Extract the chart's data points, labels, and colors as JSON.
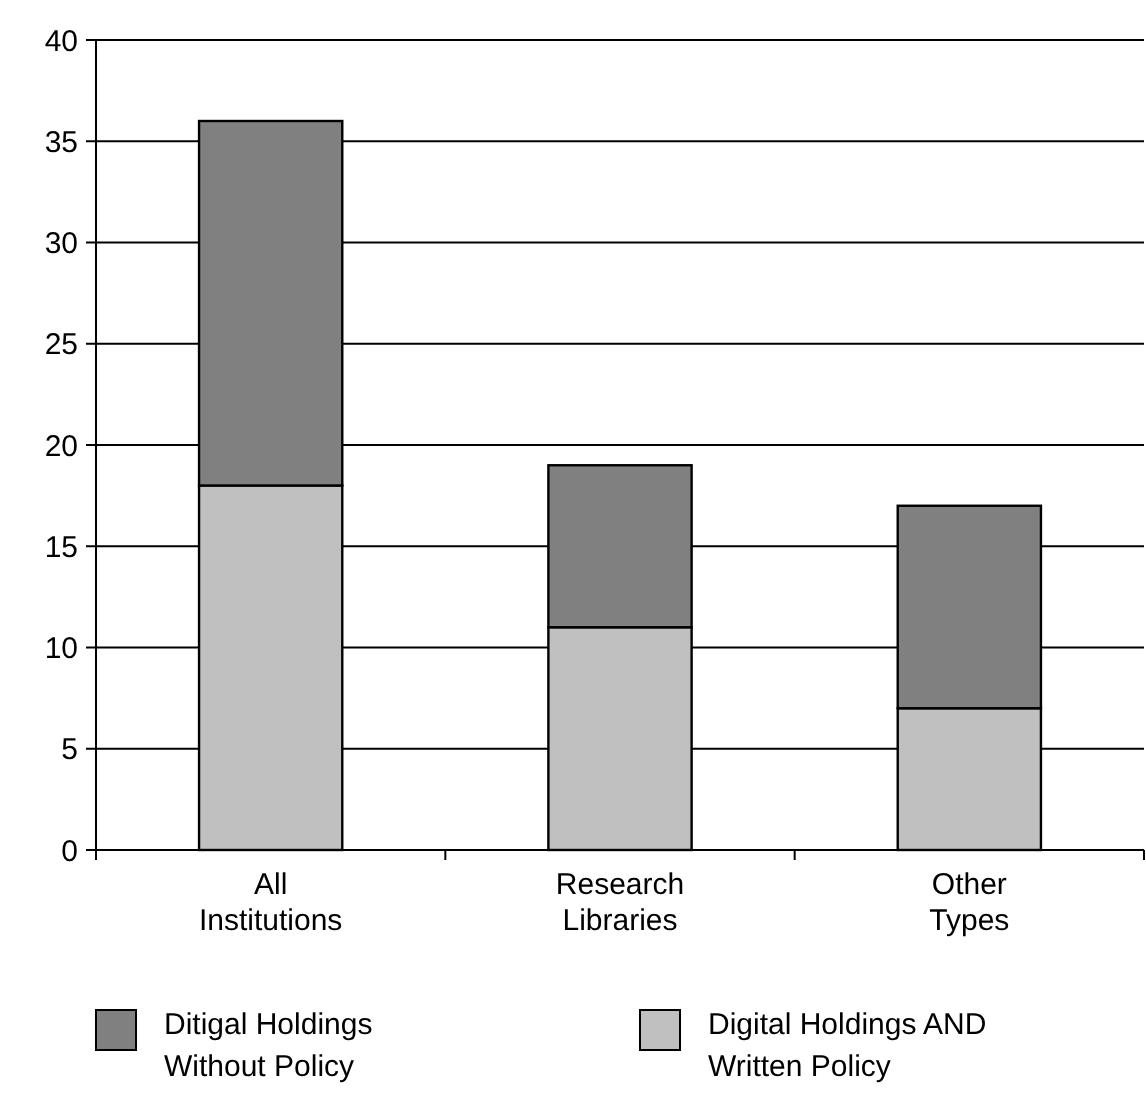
{
  "chart_data": {
    "type": "bar",
    "stacked": true,
    "categories": [
      "All Institutions",
      "Research Libraries",
      "Other Types"
    ],
    "series": [
      {
        "name": "Digital Holdings AND Written Policy",
        "color": "#c0c0c0",
        "values": [
          18,
          11,
          7
        ]
      },
      {
        "name": "Ditigal Holdings Without Policy",
        "color": "#808080",
        "values": [
          18,
          8,
          10
        ]
      }
    ],
    "ylim": [
      0,
      40
    ],
    "yticks": [
      0,
      5,
      10,
      15,
      20,
      25,
      30,
      35,
      40
    ],
    "grid": "y",
    "legend": "bottom"
  }
}
